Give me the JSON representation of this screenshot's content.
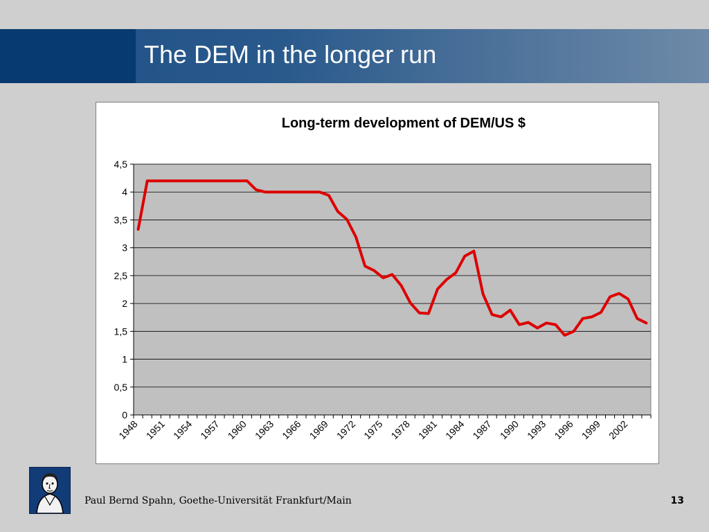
{
  "slide": {
    "title": "The DEM in the longer run",
    "footer": "Paul Bernd Spahn, Goethe-Universität Frankfurt/Main",
    "page_number": "13",
    "logo_icon": "goethe-portrait-icon"
  },
  "colors": {
    "header_dark": "#073a70",
    "header_gradient_start": "#1e4f86",
    "header_gradient_end": "#6e8aa8",
    "plot_background": "#c0c0c0",
    "series_line": "#dd0000"
  },
  "chart_data": {
    "type": "line",
    "title": "Long-term development of DEM/US $",
    "xlabel": "",
    "ylabel": "",
    "ylim": [
      0,
      4.5
    ],
    "y_ticks": [
      "0",
      "0,5",
      "1",
      "1,5",
      "2",
      "2,5",
      "3",
      "3,5",
      "4",
      "4,5"
    ],
    "grid": true,
    "legend": "none",
    "x": [
      1948,
      1949,
      1950,
      1951,
      1952,
      1953,
      1954,
      1955,
      1956,
      1957,
      1958,
      1959,
      1960,
      1961,
      1962,
      1963,
      1964,
      1965,
      1966,
      1967,
      1968,
      1969,
      1970,
      1971,
      1972,
      1973,
      1974,
      1975,
      1976,
      1977,
      1978,
      1979,
      1980,
      1981,
      1982,
      1983,
      1984,
      1985,
      1986,
      1987,
      1988,
      1989,
      1990,
      1991,
      1992,
      1993,
      1994,
      1995,
      1996,
      1997,
      1998,
      1999,
      2000,
      2001,
      2002,
      2003,
      2004
    ],
    "x_tick_labels": [
      "1948",
      "1951",
      "1954",
      "1957",
      "1960",
      "1963",
      "1966",
      "1969",
      "1972",
      "1975",
      "1978",
      "1981",
      "1984",
      "1987",
      "1990",
      "1993",
      "1996",
      "1999",
      "2002"
    ],
    "series": [
      {
        "values": [
          3.33,
          4.2,
          4.2,
          4.2,
          4.2,
          4.2,
          4.2,
          4.2,
          4.2,
          4.2,
          4.2,
          4.2,
          4.2,
          4.04,
          4.0,
          4.0,
          4.0,
          4.0,
          4.0,
          4.0,
          4.0,
          3.94,
          3.65,
          3.51,
          3.19,
          2.67,
          2.59,
          2.46,
          2.52,
          2.32,
          2.01,
          1.83,
          1.82,
          2.26,
          2.43,
          2.55,
          2.85,
          2.94,
          2.17,
          1.8,
          1.76,
          1.88,
          1.62,
          1.66,
          1.56,
          1.65,
          1.62,
          1.43,
          1.5,
          1.73,
          1.76,
          1.84,
          2.12,
          2.18,
          2.08,
          1.73,
          1.65
        ]
      }
    ]
  }
}
